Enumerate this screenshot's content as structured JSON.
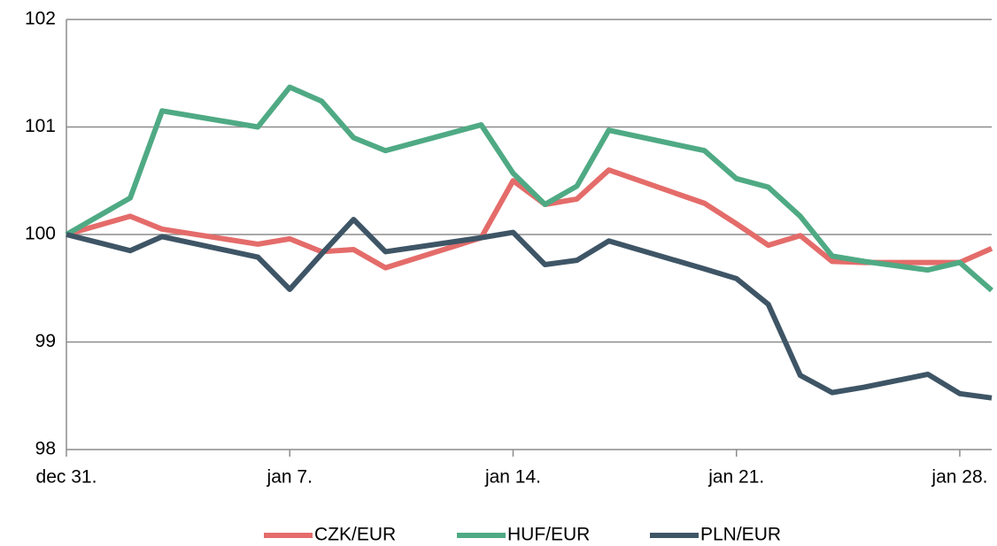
{
  "chart_data": {
    "type": "line",
    "x": [
      0,
      2,
      3,
      6,
      7,
      8,
      9,
      10,
      13,
      14,
      15,
      16,
      17,
      20,
      21,
      22,
      23,
      24,
      25,
      27,
      28,
      29
    ],
    "series": [
      {
        "name": "CZK/EUR",
        "color": "#e46c6a",
        "values": [
          100,
          100.17,
          100.05,
          99.91,
          99.96,
          99.84,
          99.86,
          99.69,
          99.97,
          100.5,
          100.28,
          100.33,
          100.6,
          100.29,
          100.1,
          99.9,
          99.99,
          99.75,
          99.74,
          99.74,
          99.74,
          99.87
        ]
      },
      {
        "name": "HUF/EUR",
        "color": "#4faa84",
        "values": [
          100,
          100.34,
          101.15,
          101.0,
          101.37,
          101.24,
          100.9,
          100.78,
          101.02,
          100.57,
          100.28,
          100.45,
          100.97,
          100.78,
          100.52,
          100.44,
          100.17,
          99.8,
          99.75,
          99.67,
          99.74,
          99.48
        ]
      },
      {
        "name": "PLN/EUR",
        "color": "#3e5566",
        "values": [
          100,
          99.85,
          99.98,
          99.79,
          99.49,
          99.82,
          100.14,
          99.84,
          99.97,
          100.02,
          99.72,
          99.76,
          99.94,
          99.68,
          99.59,
          99.35,
          98.69,
          98.53,
          98.58,
          98.7,
          98.52,
          98.48
        ]
      }
    ],
    "xlim": [
      0,
      29
    ],
    "xticks": [
      {
        "value": 0,
        "label": "dec 31."
      },
      {
        "value": 7,
        "label": "jan 7."
      },
      {
        "value": 14,
        "label": "jan 14."
      },
      {
        "value": 21,
        "label": "jan 21."
      },
      {
        "value": 28,
        "label": "jan 28."
      }
    ],
    "ylim": [
      98,
      102
    ],
    "yticks": [
      98,
      99,
      100,
      101,
      102
    ],
    "grid": true,
    "legend": "bottom"
  }
}
